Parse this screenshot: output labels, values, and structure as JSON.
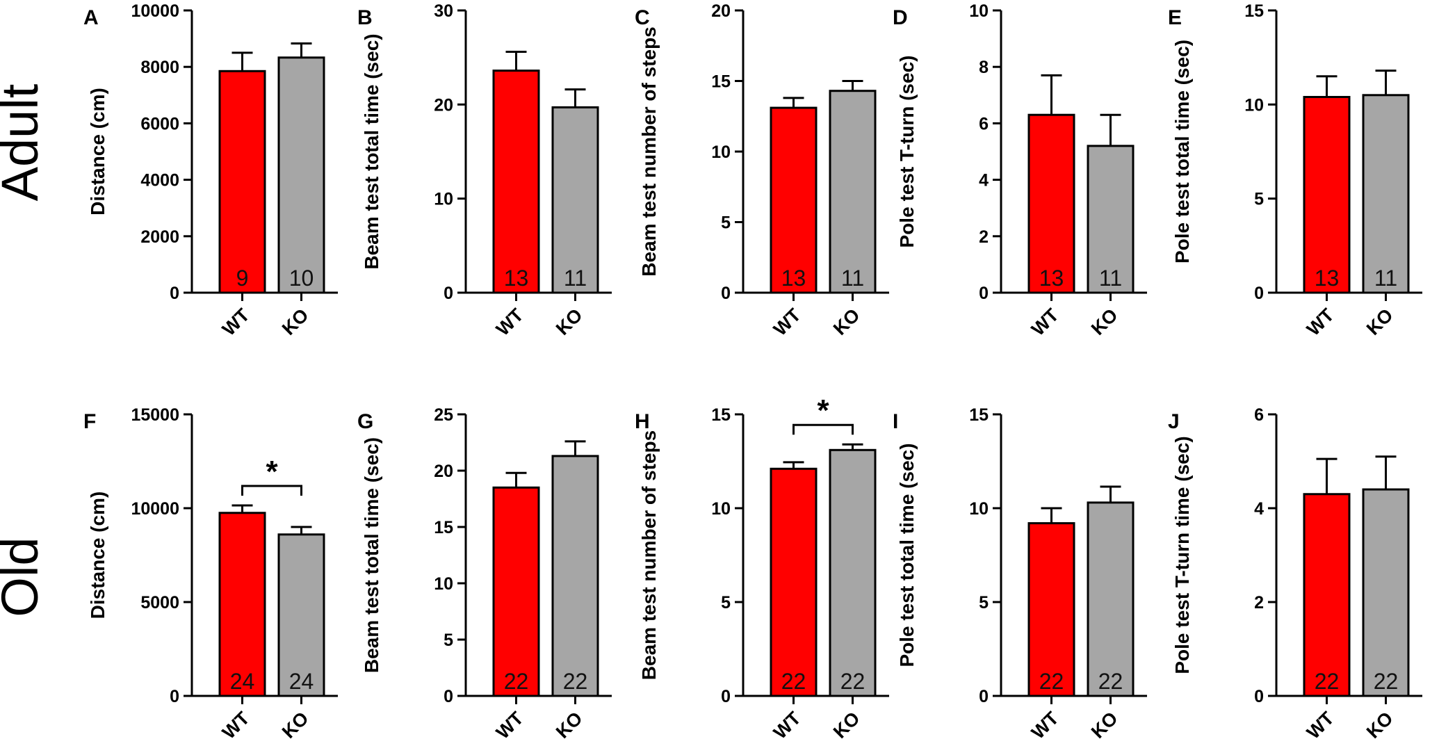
{
  "row_labels": [
    "Adult",
    "Old"
  ],
  "colors": {
    "WT": "#ff0000",
    "KO": "#a6a6a6",
    "outline": "#000000"
  },
  "chart_data": [
    {
      "panel": "A",
      "type": "bar",
      "ylabel": "Distance (cm)",
      "categories": [
        "WT",
        "KO"
      ],
      "values": [
        7850,
        8330
      ],
      "errors": [
        650,
        500
      ],
      "n": [
        "9",
        "10"
      ],
      "ylim": [
        0,
        10000
      ],
      "yticks": [
        0,
        2000,
        4000,
        6000,
        8000,
        10000
      ],
      "significance": ""
    },
    {
      "panel": "B",
      "type": "bar",
      "ylabel": "Beam test total time (sec)",
      "categories": [
        "WT",
        "KO"
      ],
      "values": [
        23.6,
        19.7
      ],
      "errors": [
        2.0,
        1.9
      ],
      "n": [
        "13",
        "11"
      ],
      "ylim": [
        0,
        30
      ],
      "yticks": [
        0,
        10,
        20,
        30
      ],
      "significance": ""
    },
    {
      "panel": "C",
      "type": "bar",
      "ylabel": "Beam test number of steps",
      "categories": [
        "WT",
        "KO"
      ],
      "values": [
        13.1,
        14.3
      ],
      "errors": [
        0.7,
        0.7
      ],
      "n": [
        "13",
        "11"
      ],
      "ylim": [
        0,
        20
      ],
      "yticks": [
        0,
        5,
        10,
        15,
        20
      ],
      "significance": ""
    },
    {
      "panel": "D",
      "type": "bar",
      "ylabel": "Pole test T-turn (sec)",
      "categories": [
        "WT",
        "KO"
      ],
      "values": [
        6.3,
        5.2
      ],
      "errors": [
        1.4,
        1.1
      ],
      "n": [
        "13",
        "11"
      ],
      "ylim": [
        0,
        10
      ],
      "yticks": [
        0,
        2,
        4,
        6,
        8,
        10
      ],
      "significance": ""
    },
    {
      "panel": "E",
      "type": "bar",
      "ylabel": "Pole test total time (sec)",
      "categories": [
        "WT",
        "KO"
      ],
      "values": [
        10.4,
        10.5
      ],
      "errors": [
        1.1,
        1.3
      ],
      "n": [
        "13",
        "11"
      ],
      "ylim": [
        0,
        15
      ],
      "yticks": [
        0,
        5,
        10,
        15
      ],
      "significance": ""
    },
    {
      "panel": "F",
      "type": "bar",
      "ylabel": "Distance (cm)",
      "categories": [
        "WT",
        "KO"
      ],
      "values": [
        9750,
        8600
      ],
      "errors": [
        400,
        400
      ],
      "n": [
        "24",
        "24"
      ],
      "ylim": [
        0,
        15000
      ],
      "yticks": [
        0,
        5000,
        10000,
        15000
      ],
      "significance": "*"
    },
    {
      "panel": "G",
      "type": "bar",
      "ylabel": "Beam test total time (sec)",
      "categories": [
        "WT",
        "KO"
      ],
      "values": [
        18.5,
        21.3
      ],
      "errors": [
        1.3,
        1.3
      ],
      "n": [
        "22",
        "22"
      ],
      "ylim": [
        0,
        25
      ],
      "yticks": [
        0,
        5,
        10,
        15,
        20,
        25
      ],
      "significance": ""
    },
    {
      "panel": "H",
      "type": "bar",
      "ylabel": "Beam test number of steps",
      "categories": [
        "WT",
        "KO"
      ],
      "values": [
        12.1,
        13.1
      ],
      "errors": [
        0.35,
        0.3
      ],
      "n": [
        "22",
        "22"
      ],
      "ylim": [
        0,
        15
      ],
      "yticks": [
        0,
        5,
        10,
        15
      ],
      "significance": "*"
    },
    {
      "panel": "I",
      "type": "bar",
      "ylabel": "Pole test total time (sec)",
      "categories": [
        "WT",
        "KO"
      ],
      "values": [
        9.2,
        10.3
      ],
      "errors": [
        0.8,
        0.85
      ],
      "n": [
        "22",
        "22"
      ],
      "ylim": [
        0,
        15
      ],
      "yticks": [
        0,
        5,
        10,
        15
      ],
      "significance": ""
    },
    {
      "panel": "J",
      "type": "bar",
      "ylabel": "Pole test T-turn time (sec)",
      "categories": [
        "WT",
        "KO"
      ],
      "values": [
        4.3,
        4.4
      ],
      "errors": [
        0.75,
        0.7
      ],
      "n": [
        "22",
        "22"
      ],
      "ylim": [
        0,
        6
      ],
      "yticks": [
        0,
        2,
        4,
        6
      ],
      "significance": ""
    }
  ]
}
